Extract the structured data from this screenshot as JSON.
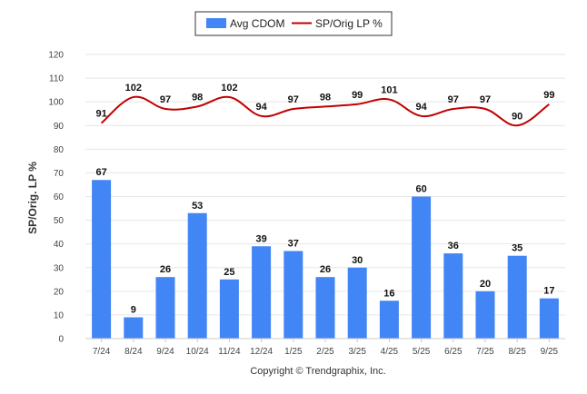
{
  "chart_data": {
    "type": "bar",
    "categories": [
      "7/24",
      "8/24",
      "9/24",
      "10/24",
      "11/24",
      "12/24",
      "1/25",
      "2/25",
      "3/25",
      "4/25",
      "5/25",
      "6/25",
      "7/25",
      "8/25",
      "9/25"
    ],
    "series": [
      {
        "name": "Avg CDOM",
        "type": "bar",
        "color": "#4285f4",
        "values": [
          67,
          9,
          26,
          53,
          25,
          39,
          37,
          26,
          30,
          16,
          60,
          36,
          20,
          35,
          17
        ]
      },
      {
        "name": "SP/Orig LP %",
        "type": "line",
        "color": "#c00000",
        "values": [
          91,
          102,
          97,
          98,
          102,
          94,
          97,
          98,
          99,
          101,
          94,
          97,
          97,
          90,
          99
        ]
      }
    ],
    "ylabel": "SP/Orig. LP %",
    "xlabel": "",
    "ylim": [
      0,
      120
    ],
    "yticks": [
      0,
      10,
      20,
      30,
      40,
      50,
      60,
      70,
      80,
      90,
      100,
      110,
      120
    ],
    "legend_position": "top-center",
    "grid": true
  },
  "footer": {
    "copyright": "Copyright © Trendgraphix, Inc."
  }
}
